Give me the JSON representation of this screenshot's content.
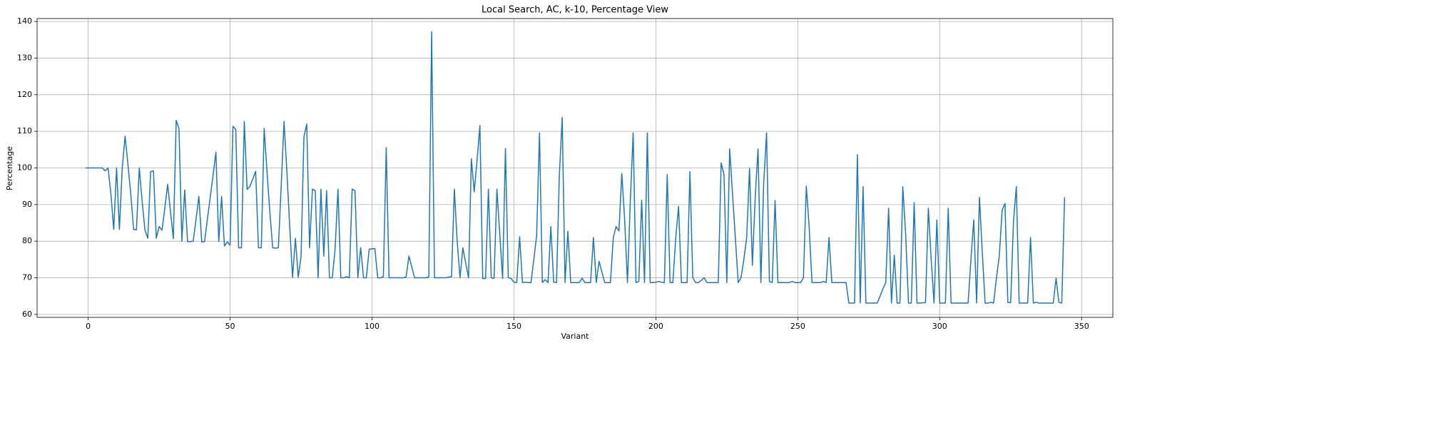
{
  "chart_data": {
    "type": "line",
    "title": "Local Search, AC, k-10, Percentage View",
    "x_label": "Variant",
    "y_label": "Percentage",
    "xlim": [
      -18,
      361
    ],
    "ylim": [
      59.2,
      140.8
    ],
    "xticks": [
      0,
      50,
      100,
      150,
      200,
      250,
      300,
      350
    ],
    "yticks": [
      60,
      70,
      80,
      90,
      100,
      110,
      120,
      130,
      140
    ],
    "grid": true,
    "x": [
      -1,
      0,
      1,
      2,
      3,
      4,
      5,
      6,
      7,
      8,
      9,
      10,
      11,
      12,
      13,
      14,
      15,
      16,
      17,
      18,
      19,
      20,
      21,
      22,
      23,
      24,
      25,
      26,
      27,
      28,
      29,
      30,
      31,
      32,
      33,
      34,
      35,
      36,
      37,
      38,
      39,
      40,
      41,
      42,
      43,
      44,
      45,
      46,
      47,
      48,
      49,
      50,
      51,
      52,
      53,
      54,
      55,
      56,
      57,
      58,
      59,
      60,
      61,
      62,
      63,
      64,
      65,
      66,
      67,
      68,
      69,
      70,
      71,
      72,
      73,
      74,
      75,
      76,
      77,
      78,
      79,
      80,
      81,
      82,
      83,
      84,
      85,
      86,
      87,
      88,
      89,
      90,
      91,
      92,
      93,
      94,
      95,
      96,
      97,
      98,
      99,
      100,
      101,
      102,
      103,
      104,
      105,
      106,
      107,
      108,
      109,
      110,
      111,
      112,
      113,
      114,
      115,
      116,
      117,
      118,
      119,
      120,
      121,
      122,
      123,
      124,
      125,
      126,
      127,
      128,
      129,
      130,
      131,
      132,
      133,
      134,
      135,
      136,
      137,
      138,
      139,
      140,
      141,
      142,
      143,
      144,
      145,
      146,
      147,
      148,
      149,
      150,
      151,
      152,
      153,
      154,
      155,
      156,
      157,
      158,
      159,
      160,
      161,
      162,
      163,
      164,
      165,
      166,
      167,
      168,
      169,
      170,
      171,
      172,
      173,
      174,
      175,
      176,
      177,
      178,
      179,
      180,
      181,
      182,
      183,
      184,
      185,
      186,
      187,
      188,
      189,
      190,
      191,
      192,
      193,
      194,
      195,
      196,
      197,
      198,
      199,
      200,
      201,
      202,
      203,
      204,
      205,
      206,
      207,
      208,
      209,
      210,
      211,
      212,
      213,
      214,
      215,
      216,
      217,
      218,
      219,
      220,
      221,
      222,
      223,
      224,
      225,
      226,
      227,
      228,
      229,
      230,
      231,
      232,
      233,
      234,
      235,
      236,
      237,
      238,
      239,
      240,
      241,
      242,
      243,
      244,
      245,
      246,
      247,
      248,
      249,
      250,
      251,
      252,
      253,
      254,
      255,
      256,
      257,
      258,
      259,
      260,
      261,
      262,
      263,
      264,
      265,
      266,
      267,
      268,
      269,
      270,
      271,
      272,
      273,
      274,
      275,
      276,
      277,
      278,
      279,
      280,
      281,
      282,
      283,
      284,
      285,
      286,
      287,
      288,
      289,
      290,
      291,
      292,
      293,
      294,
      295,
      296,
      297,
      298,
      299,
      300,
      301,
      302,
      303,
      304,
      305,
      306,
      307,
      308,
      309,
      310,
      311,
      312,
      313,
      314,
      315,
      316,
      317,
      318,
      319,
      320,
      321,
      322,
      323,
      324,
      325,
      326,
      327,
      328,
      329,
      330,
      331,
      332,
      333,
      334,
      335,
      336,
      337,
      338,
      339,
      340,
      341,
      342,
      343,
      344
    ],
    "series": [
      {
        "color": "#1f77b4",
        "values": [
          100,
          100,
          100,
          100,
          100,
          100,
          100,
          99.2,
          100,
          93,
          83.2,
          100,
          83.2,
          100,
          108.7,
          101,
          93,
          83.2,
          83.1,
          100,
          91,
          83,
          80.8,
          99,
          99.2,
          80.8,
          84,
          83,
          89,
          95.5,
          88,
          80.7,
          113,
          110.7,
          80,
          94,
          79.9,
          79.9,
          80,
          86,
          92.2,
          79.8,
          79.9,
          86,
          92,
          98,
          104.3,
          79.9,
          92.2,
          78.7,
          79.8,
          78.9,
          111.4,
          110.5,
          78.2,
          78.2,
          112.7,
          94.1,
          95,
          97,
          99.1,
          78.2,
          78.2,
          110.8,
          99,
          88,
          78.2,
          78.1,
          78.2,
          95,
          112.7,
          99,
          84,
          70.1,
          80.8,
          70.2,
          75.8,
          108.5,
          112,
          78.2,
          94.2,
          93.8,
          70,
          94.2,
          75.9,
          93.8,
          70,
          70,
          78,
          94.2,
          70,
          70,
          70.3,
          70,
          94.2,
          93.8,
          70,
          78.2,
          70,
          70,
          77.8,
          77.9,
          78,
          70,
          70,
          70.3,
          105.5,
          70,
          70,
          70,
          70,
          70,
          70,
          70.2,
          75.9,
          73,
          70,
          70,
          70,
          70,
          70,
          70.3,
          137.2,
          70,
          70,
          70,
          70,
          70,
          70.2,
          70.3,
          94.2,
          80,
          70,
          78.2,
          74,
          70,
          102.5,
          93.5,
          102,
          111.6,
          69.8,
          69.8,
          94.2,
          70,
          69.8,
          94.2,
          82,
          69.8,
          105.3,
          70,
          69.8,
          68.8,
          68.7,
          81.2,
          68.7,
          68.8,
          68.7,
          68.7,
          75,
          81.5,
          109.6,
          68.7,
          69.5,
          68.7,
          84,
          68.8,
          68.7,
          98,
          113.8,
          68.7,
          82.7,
          68.7,
          68.7,
          68.7,
          68.7,
          69.9,
          68.7,
          68.7,
          68.7,
          81,
          68.7,
          74.5,
          71.5,
          68.7,
          68.7,
          68.7,
          81,
          84,
          82.8,
          98.5,
          86,
          68.7,
          91,
          109.6,
          68.7,
          69,
          91.2,
          68.7,
          109.6,
          68.7,
          68.7,
          68.8,
          69,
          68.8,
          68.7,
          98.2,
          68.7,
          68.7,
          81,
          89.5,
          68.7,
          68.7,
          68.7,
          99,
          70,
          68.7,
          68.7,
          69.3,
          70,
          68.7,
          68.7,
          68.7,
          68.7,
          68.7,
          101.4,
          98.3,
          68.7,
          105.2,
          93,
          81,
          68.7,
          70,
          75,
          81,
          99.9,
          73.4,
          92,
          105.2,
          68.7,
          96,
          109.6,
          69,
          68.7,
          91.1,
          68.7,
          68.7,
          68.7,
          68.7,
          68.7,
          69,
          68.7,
          68.7,
          68.7,
          70,
          95,
          84,
          68.7,
          68.7,
          68.7,
          68.7,
          69,
          68.7,
          81,
          68.7,
          68.7,
          68.7,
          68.7,
          68.7,
          68.7,
          63.1,
          63.1,
          63.1,
          103.6,
          63.1,
          94.9,
          63.1,
          63.1,
          63.1,
          63.1,
          63.1,
          65,
          67,
          68.7,
          89,
          63.1,
          76.2,
          63.1,
          63.1,
          94.9,
          82,
          63.1,
          63.1,
          90.5,
          63.1,
          63.1,
          63.2,
          63.2,
          89,
          75,
          63.1,
          85.8,
          63.1,
          63.1,
          63.1,
          89,
          63.1,
          63.1,
          63.1,
          63.1,
          63.1,
          63.1,
          63.1,
          75,
          85.8,
          63.1,
          92,
          77,
          63.1,
          63.1,
          63.3,
          63.1,
          70,
          76,
          88.5,
          90.3,
          63.3,
          63.2,
          85.5,
          94.9,
          63.1,
          63.1,
          63.1,
          63.1,
          81,
          63.1,
          63.3,
          63.1,
          63.1,
          63.1,
          63.1,
          63.1,
          63.1,
          69.9,
          63.3,
          63.1,
          92
        ]
      }
    ]
  }
}
